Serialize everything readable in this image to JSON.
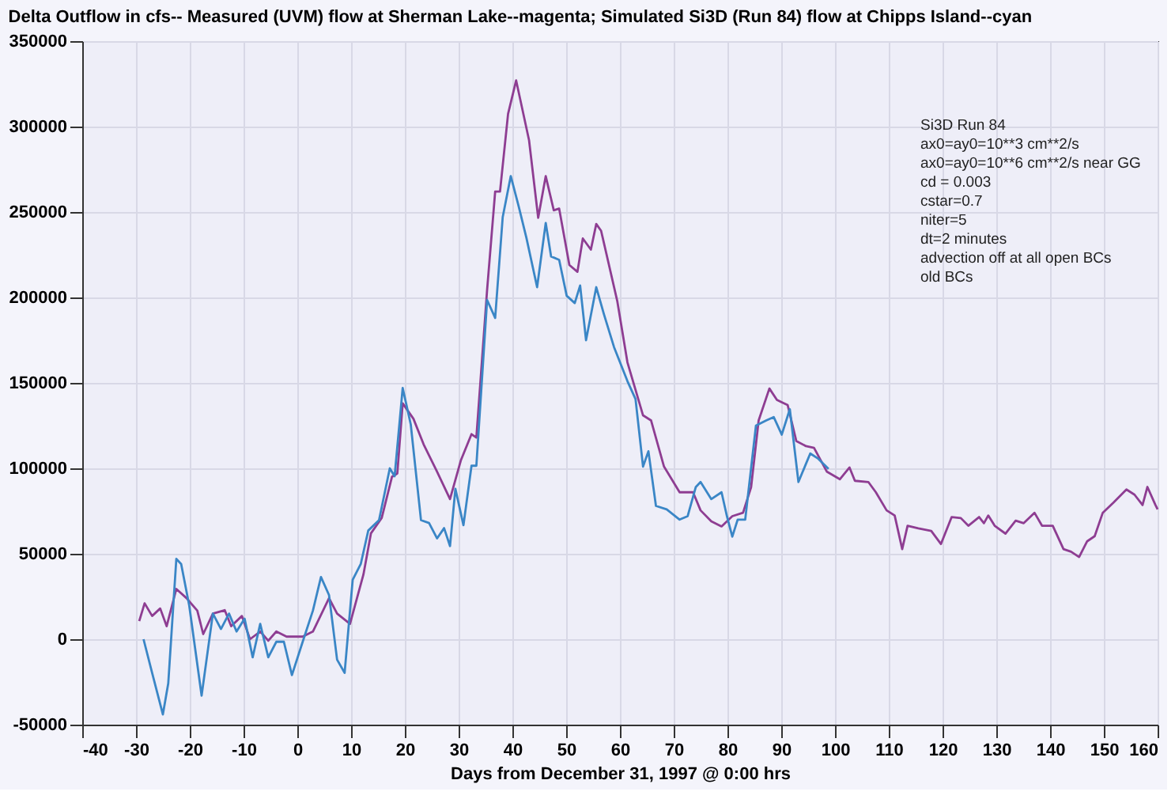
{
  "chart_data": {
    "type": "line",
    "title": "Delta Outflow in cfs-- Measured (UVM) flow at Sherman Lake--magenta;  Simulated Si3D (Run 84) flow at Chipps Island--cyan",
    "xlabel": "Days from December 31, 1997 @ 0:00 hrs",
    "xlim": [
      -40,
      160
    ],
    "xticks": [
      -40,
      -30,
      -20,
      -10,
      0,
      10,
      20,
      30,
      40,
      50,
      60,
      70,
      80,
      90,
      100,
      110,
      120,
      130,
      140,
      150,
      160
    ],
    "ylim": [
      -50000,
      350000
    ],
    "yticks": [
      -50000,
      0,
      50000,
      100000,
      150000,
      200000,
      250000,
      300000,
      350000
    ],
    "grid": true,
    "legend": false,
    "line_style": "solid",
    "marker": "none",
    "annotations": [
      "Si3D Run 84",
      "ax0=ay0=10**3 cm**2/s",
      "ax0=ay0=10**6 cm**2/s near GG",
      "cd = 0.003",
      "cstar=0.7",
      "niter=5",
      "dt=2 minutes",
      "advection off at all open BCs",
      "old BCs"
    ],
    "series": [
      {
        "color": "#8e3d92",
        "x": [
          -29.4,
          -28.4,
          -27,
          -25.5,
          -24.3,
          -22.5,
          -20.6,
          -18.6,
          -17.5,
          -15.7,
          -13.5,
          -12.3,
          -10.3,
          -8.8,
          -6.9,
          -5.4,
          -3.9,
          -2,
          1,
          2.9,
          5.9,
          7.4,
          9.8,
          12.3,
          13.7,
          15.7,
          17.6,
          18.6,
          19.6,
          21.6,
          23.5,
          26,
          28.4,
          30.4,
          32.4,
          33.3,
          35.3,
          36.8,
          37.7,
          39.2,
          40.7,
          43.1,
          44.8,
          46.2,
          47.7,
          48.7,
          50.6,
          52.1,
          53.1,
          54.6,
          55.6,
          56.5,
          59.5,
          61.4,
          64.3,
          65.8,
          68.2,
          71.1,
          73.6,
          75,
          77,
          78.9,
          80.9,
          82.9,
          84.4,
          85.8,
          87.8,
          89.2,
          91.2,
          92.8,
          94.6,
          96.1,
          98.5,
          100.9,
          102.7,
          103.7,
          106.2,
          107.6,
          109.6,
          111.1,
          112.5,
          113.5,
          115.5,
          117.9,
          119.7,
          121.7,
          123.4,
          124.8,
          126.8,
          127.7,
          128.5,
          129.7,
          131.7,
          133.6,
          135.1,
          137.1,
          138.5,
          140.5,
          142.5,
          143.9,
          145.4,
          146.9,
          148.3,
          149.8,
          151.8,
          154.2,
          155.7,
          157.2,
          158.1,
          159.6,
          160
        ],
        "values": [
          10600,
          21000,
          13600,
          18000,
          7600,
          29400,
          24000,
          16700,
          3000,
          15000,
          17000,
          7600,
          13600,
          0,
          4500,
          -900,
          4500,
          1500,
          1500,
          4500,
          24000,
          15000,
          9000,
          37900,
          62000,
          71000,
          95000,
          97000,
          138000,
          129000,
          114000,
          98000,
          82000,
          104500,
          120000,
          118000,
          204500,
          262000,
          262000,
          307500,
          327000,
          292000,
          246600,
          271000,
          251000,
          252000,
          219000,
          215000,
          234500,
          228000,
          243000,
          239000,
          198000,
          162000,
          131000,
          128000,
          101000,
          86000,
          86000,
          75400,
          69000,
          66000,
          72000,
          74000,
          89000,
          128000,
          146700,
          140000,
          137000,
          116000,
          113000,
          112000,
          98000,
          93600,
          100500,
          92700,
          92000,
          86000,
          75400,
          72400,
          52700,
          66400,
          64900,
          63400,
          55700,
          71500,
          70900,
          66400,
          71500,
          67900,
          72400,
          66400,
          61800,
          69400,
          67900,
          74000,
          66400,
          66400,
          52700,
          51200,
          48100,
          57300,
          60300,
          74000,
          80000,
          87600,
          84600,
          78500,
          89100,
          78500,
          76000
        ]
      },
      {
        "color": "#3a86c6",
        "x": [
          -28.6,
          -27,
          -25,
          -24,
          -22.5,
          -21.6,
          -20.1,
          -17.8,
          -15.7,
          -14.2,
          -12.7,
          -11.3,
          -9.8,
          -8.3,
          -6.9,
          -5.4,
          -3.9,
          -2.5,
          -1,
          1,
          2.9,
          4.4,
          5.9,
          7.4,
          8.8,
          10.3,
          11.8,
          13.2,
          15.2,
          17.2,
          18.1,
          19.6,
          21.1,
          23,
          24.5,
          26,
          27.3,
          28.4,
          29.4,
          30.9,
          32.4,
          33.3,
          35.3,
          36.8,
          38.2,
          39.7,
          41.2,
          42.6,
          44.6,
          46.2,
          47.2,
          48.7,
          50.1,
          51.6,
          52.6,
          53.7,
          55.6,
          57,
          58.9,
          61.4,
          62.9,
          64.3,
          65.3,
          66.7,
          68.7,
          71.1,
          72.6,
          74.1,
          75,
          77,
          78.9,
          79.9,
          80.9,
          81.9,
          83.3,
          85.3,
          87.2,
          88.6,
          90.1,
          91.6,
          93.2,
          95.4,
          96.9,
          98.8
        ],
        "values": [
          0,
          -19700,
          -44000,
          -25800,
          47000,
          44000,
          19700,
          -33000,
          15000,
          6000,
          15000,
          4500,
          12000,
          -10600,
          9000,
          -10600,
          -1500,
          -1500,
          -21000,
          -1500,
          16700,
          36400,
          25800,
          -12000,
          -19700,
          34800,
          44000,
          63600,
          69700,
          100000,
          95400,
          147000,
          125700,
          69700,
          68000,
          59000,
          65000,
          54500,
          88000,
          66700,
          101500,
          101500,
          198500,
          188000,
          247000,
          271000,
          253000,
          235000,
          206000,
          243600,
          224000,
          222000,
          201000,
          196700,
          207000,
          175000,
          206000,
          190500,
          171000,
          151000,
          140600,
          101000,
          110000,
          78000,
          76000,
          70000,
          72000,
          89000,
          92000,
          82000,
          86000,
          72000,
          60000,
          70000,
          70000,
          125000,
          128000,
          130000,
          119700,
          134600,
          92000,
          108700,
          105600,
          99700
        ]
      }
    ]
  }
}
